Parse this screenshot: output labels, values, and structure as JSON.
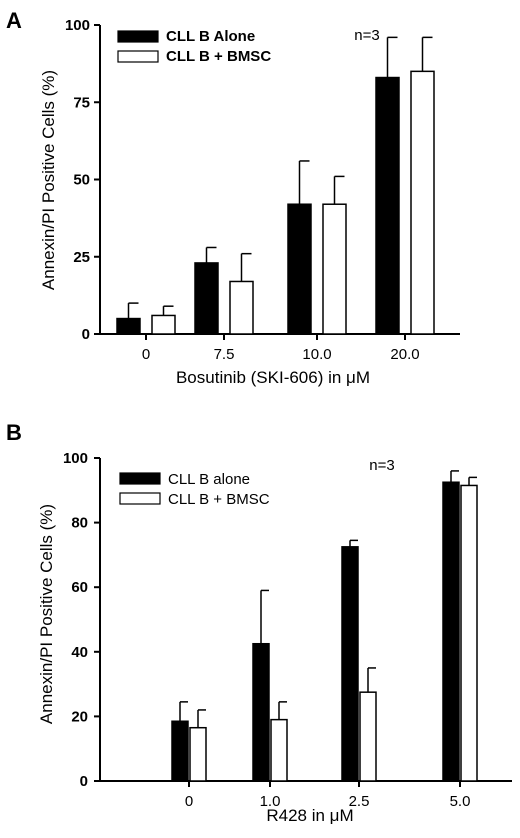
{
  "chart_data": [
    {
      "panel": "A",
      "type": "bar",
      "categories": [
        "0",
        "7.5",
        "10.0",
        "20.0"
      ],
      "series": [
        {
          "name": "CLL B Alone",
          "color": "#000000",
          "values": [
            5,
            23,
            42,
            83
          ],
          "errors": [
            5,
            5,
            14,
            13
          ]
        },
        {
          "name": "CLL B + BMSC",
          "color": "#ffffff",
          "values": [
            6,
            17,
            42,
            85
          ],
          "errors": [
            3,
            9,
            9,
            11
          ]
        }
      ],
      "yticks": [
        0,
        25,
        50,
        75,
        100
      ],
      "ylim": [
        0,
        100
      ],
      "xlabel": "Bosutinib (SKI-606) in μM",
      "ylabel": "Annexin/PI Positive Cells (%)",
      "annotation": "n=3",
      "legend_position": "top-left",
      "grid": false
    },
    {
      "panel": "B",
      "type": "bar",
      "categories": [
        "0",
        "1.0",
        "2.5",
        "5.0"
      ],
      "series": [
        {
          "name": "CLL B alone",
          "color": "#000000",
          "values": [
            18.5,
            42.5,
            72.5,
            92.5
          ],
          "errors": [
            6,
            16.5,
            2,
            3.5
          ]
        },
        {
          "name": "CLL B + BMSC",
          "color": "#ffffff",
          "values": [
            16.5,
            19,
            27.5,
            91.5
          ],
          "errors": [
            5.5,
            5.5,
            7.5,
            2.5
          ]
        }
      ],
      "yticks": [
        0,
        20,
        40,
        60,
        80,
        100
      ],
      "ylim": [
        0,
        100
      ],
      "xlabel": "R428 in μM",
      "ylabel": "Annexin/PI Positive Cells (%)",
      "annotation": "n=3",
      "legend_position": "top-left",
      "grid": false
    }
  ]
}
